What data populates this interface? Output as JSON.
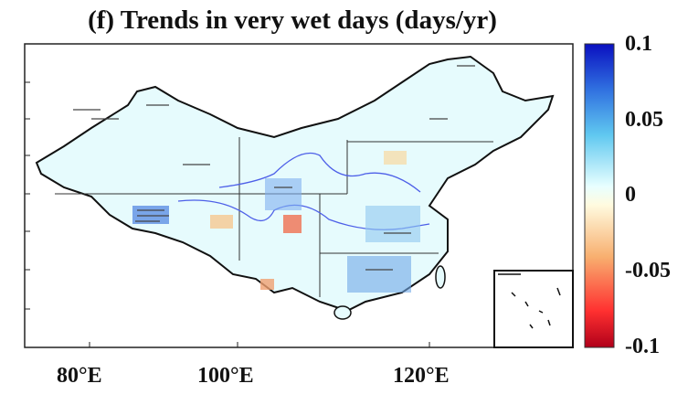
{
  "title": "(f) Trends in very wet days (days/yr)",
  "x_tick_labels": [
    "80°E",
    "100°E",
    "120°E"
  ],
  "colorbar": {
    "tick_labels": [
      "0.1",
      "0.05",
      "0",
      "-0.05",
      "-0.1"
    ],
    "range": [
      -0.1,
      0.1
    ],
    "colors": [
      "#b0001a",
      "#ff3030",
      "#f8b070",
      "#fffbe0",
      "#e8ffff",
      "#60c8f0",
      "#3070e0",
      "#0a10c0"
    ]
  },
  "map": {
    "land_color": "#e6fbfd",
    "river_color": "#4d5fe8",
    "stippling": "significant trends marked with dashes",
    "inset": "South China Sea islands"
  }
}
